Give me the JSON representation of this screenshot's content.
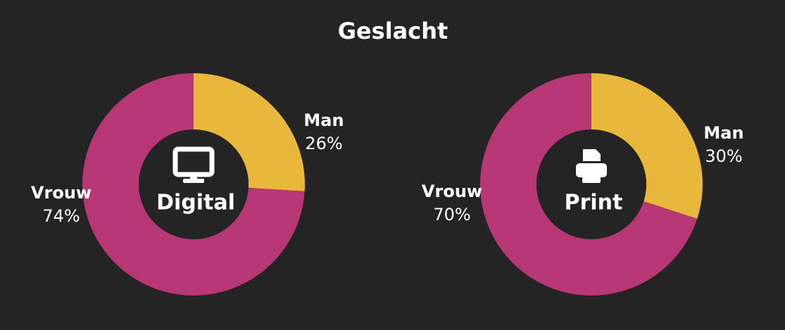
{
  "title": "Geslacht",
  "chart_data": [
    {
      "type": "donut",
      "center_label": "Digital",
      "categories": [
        "Man",
        "Vrouw"
      ],
      "values": [
        26,
        74
      ],
      "value_labels": [
        "26%",
        "74%"
      ],
      "colors": [
        "#e9b83a",
        "#b73674"
      ]
    },
    {
      "type": "donut",
      "center_label": "Print",
      "categories": [
        "Man",
        "Vrouw"
      ],
      "values": [
        30,
        70
      ],
      "value_labels": [
        "30%",
        "70%"
      ],
      "colors": [
        "#e9b83a",
        "#b73674"
      ]
    }
  ]
}
